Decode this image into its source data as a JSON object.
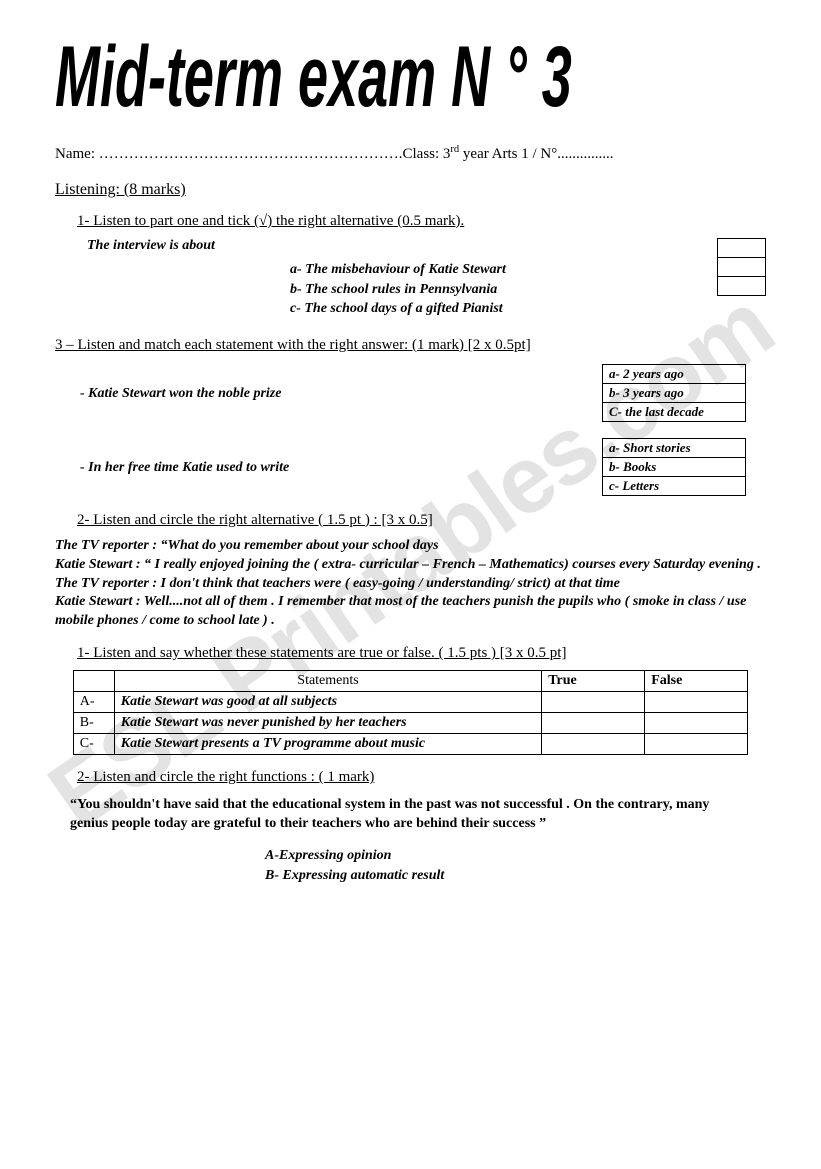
{
  "watermark": "ESL Printables.com",
  "title": "Mid-term exam N ° 3",
  "header": {
    "name_label": "Name:",
    "name_dots": " …………………………………………………….",
    "class_label": "Class: 3",
    "year_suffix": "rd",
    "year_rest": " year   Arts  1 /  N°...............",
    "font_size": 15
  },
  "listening": {
    "heading": "Listening: (8 marks)",
    "q1": {
      "label": "1-  Listen to part one  and tick (√) the right alternative (0.5  mark).",
      "prompt": "The interview is about",
      "options": [
        "a-    The misbehaviour of  Katie Stewart",
        "b-    The school rules in Pennsylvania",
        "c-     The  school days of a gifted Pianist"
      ]
    },
    "q3": {
      "label": "3 – Listen and match each statement with the right answer: (1 mark) [2 x 0.5pt]",
      "pairs": [
        {
          "statement": "Katie Stewart won the noble prize",
          "options": [
            "a-   2 years ago",
            "b-   3 years ago",
            "C-  the  last decade"
          ]
        },
        {
          "statement": "In her free time Katie used to write",
          "options": [
            "a-  Short stories",
            "b-   Books",
            "c-   Letters"
          ]
        }
      ]
    },
    "q2": {
      "label": "2-  Listen and circle the right  alternative  ( 1.5 pt ) : [3 x 0.5]",
      "dialog_lines": [
        " The TV reporter  : “What do you remember about your school days",
        " Katie Stewart  : “  I really enjoyed joining the ( extra- curricular – French – Mathematics) courses every Saturday evening .",
        "   The TV reporter  :  I don't think that teachers were ( easy-going /  understanding/ strict) at that time",
        " Katie Stewart : Well....not all of them . I remember that most of the teachers punish the pupils who ( smoke in class / use mobile phones / come to school late ) ."
      ]
    },
    "q_tf": {
      "label": "1-  Listen and say whether these statements are true or false. ( 1.5  pts ) [3 x 0.5 pt]",
      "cols": [
        "Statements",
        "True",
        "False"
      ],
      "rows": [
        {
          "id": "A-",
          "text": "Katie Stewart was good at all subjects"
        },
        {
          "id": "B-",
          "text": "Katie Stewart was never punished by her teachers"
        },
        {
          "id": "C-",
          "text": "Katie Stewart presents a TV programme about music"
        }
      ]
    },
    "q_func": {
      "label": "2-  Listen and circle the right functions : ( 1 mark)",
      "quote": "“You shouldn't have said that the educational system in the past was not  successful .  On the contrary, many genius people today are grateful to their teachers who are behind their success    ”",
      "options": [
        "A-Expressing opinion",
        "B- Expressing automatic result"
      ]
    }
  }
}
